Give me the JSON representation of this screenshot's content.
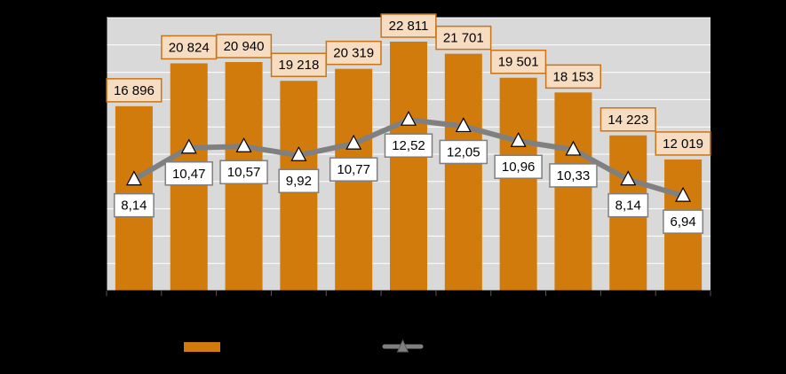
{
  "chart_data": {
    "type": "bar",
    "categories": [
      "",
      "",
      "",
      "",
      "",
      "",
      "",
      "",
      "",
      "",
      ""
    ],
    "series": [
      {
        "type": "bar",
        "values": [
          16896,
          20824,
          20940,
          19218,
          20319,
          22811,
          21701,
          19501,
          18153,
          14223,
          12019
        ],
        "labels": [
          "16 896",
          "20 824",
          "20 940",
          "19 218",
          "20 319",
          "22 811",
          "21 701",
          "19 501",
          "18 153",
          "14 223",
          "12 019"
        ],
        "color": "#d07b0c"
      },
      {
        "type": "line",
        "marker": "triangle",
        "values": [
          8.14,
          10.47,
          10.57,
          9.92,
          10.77,
          12.52,
          12.05,
          10.96,
          10.33,
          8.14,
          6.94
        ],
        "labels": [
          "8,14",
          "10,47",
          "10,57",
          "9,92",
          "10,77",
          "12,52",
          "12,05",
          "10,96",
          "10,33",
          "8,14",
          "6,94"
        ],
        "color": "#808080"
      }
    ],
    "ylim_bars": [
      0,
      25000
    ],
    "ylim_line": [
      0,
      20
    ],
    "grid": true,
    "plot_background": "#d9d9d9",
    "legend": "bottom",
    "title": "",
    "xlabel": "",
    "ylabel": ""
  }
}
